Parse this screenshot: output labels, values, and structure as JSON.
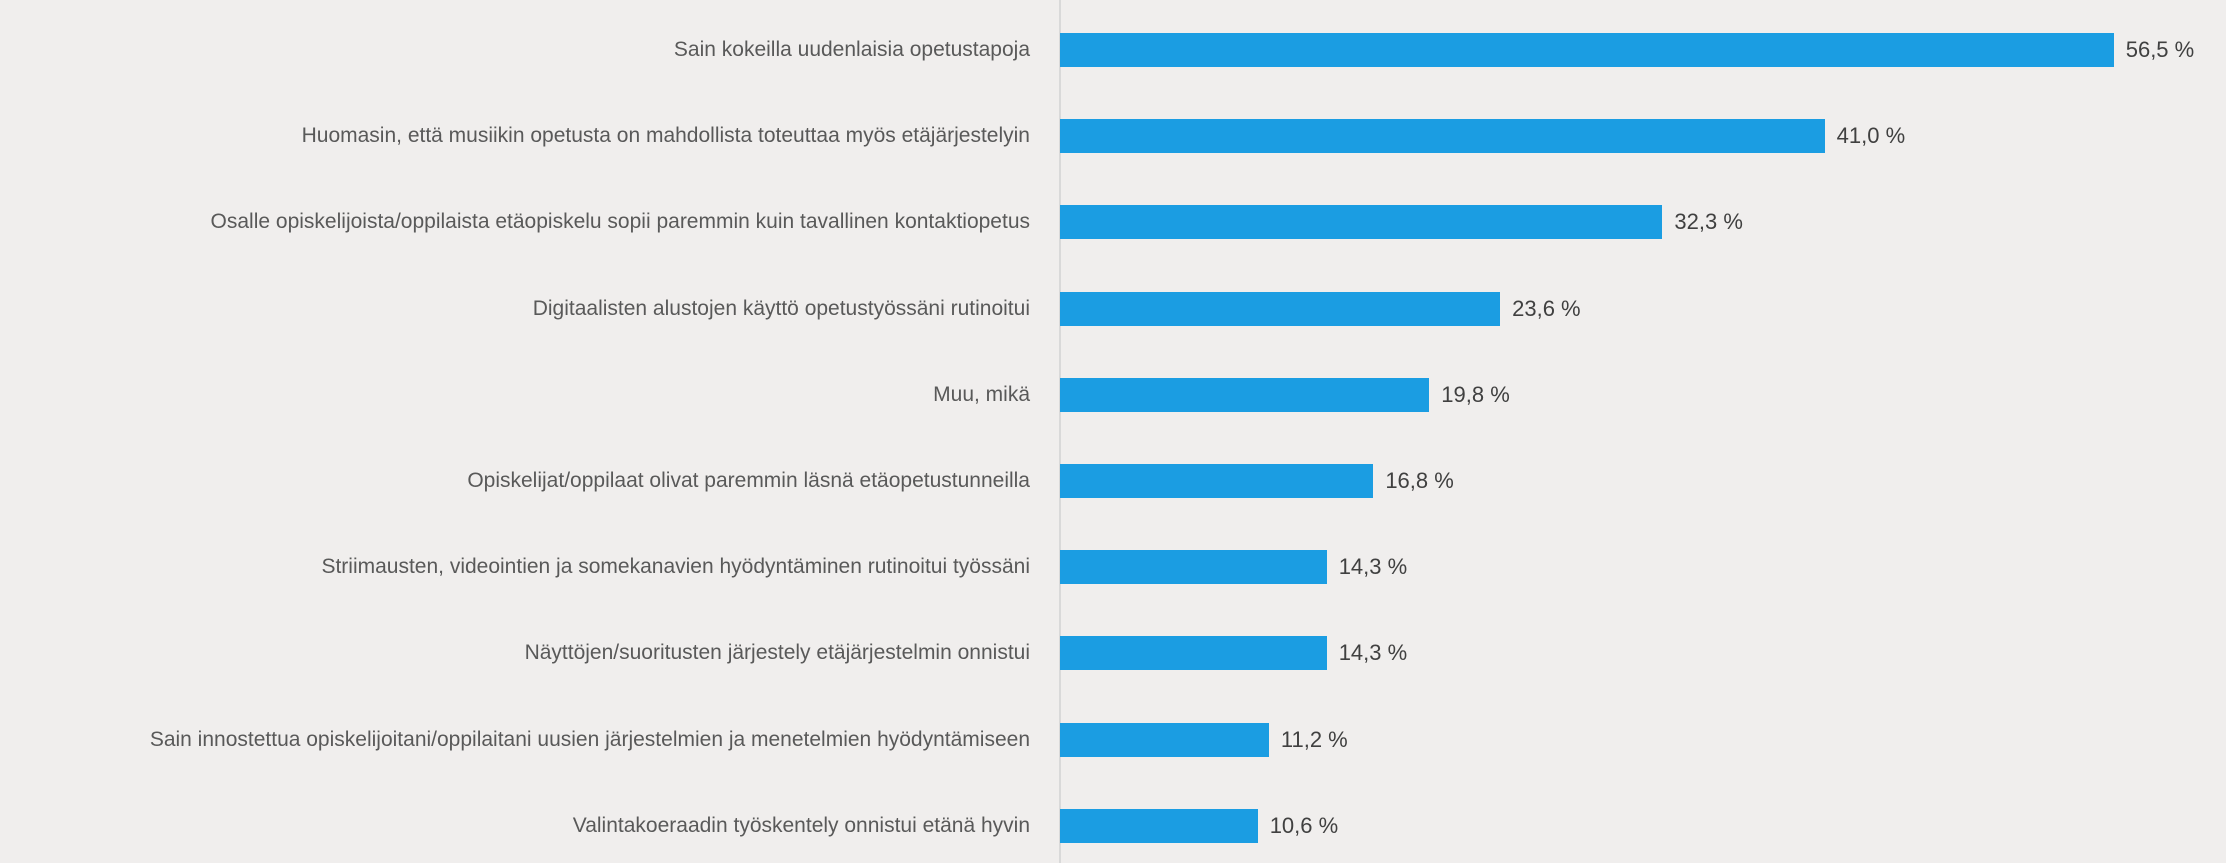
{
  "chart_data": {
    "type": "bar",
    "orientation": "horizontal",
    "color": "#1b9de2",
    "categories": [
      "Sain kokeilla uudenlaisia opetustapoja",
      "Huomasin, että musiikin opetusta on mahdollista toteuttaa myös etäjärjestelyin",
      "Osalle opiskelijoista/oppilaista etäopiskelu sopii paremmin kuin tavallinen kontaktiopetus",
      "Digitaalisten alustojen käyttö opetustyössäni rutinoitui",
      "Muu, mikä",
      "Opiskelijat/oppilaat olivat paremmin läsnä etäopetustunneilla",
      "Striimausten, videointien ja somekanavien hyödyntäminen rutinoitui työssäni",
      "Näyttöjen/suoritusten järjestely etäjärjestelmin onnistui",
      "Sain innostettua opiskelijoitani/oppilaitani uusien järjestelmien ja menetelmien hyödyntämiseen",
      "Valintakoeraadin työskentely onnistui etänä hyvin"
    ],
    "values": [
      56.5,
      41.0,
      32.3,
      23.6,
      19.8,
      16.8,
      14.3,
      14.3,
      11.2,
      10.6
    ],
    "value_labels": [
      "56,5 %",
      "41,0 %",
      "32,3 %",
      "23,6 %",
      "19,8 %",
      "16,8 %",
      "14,3 %",
      "14,3 %",
      "11,2 %",
      "10,6 %"
    ]
  }
}
